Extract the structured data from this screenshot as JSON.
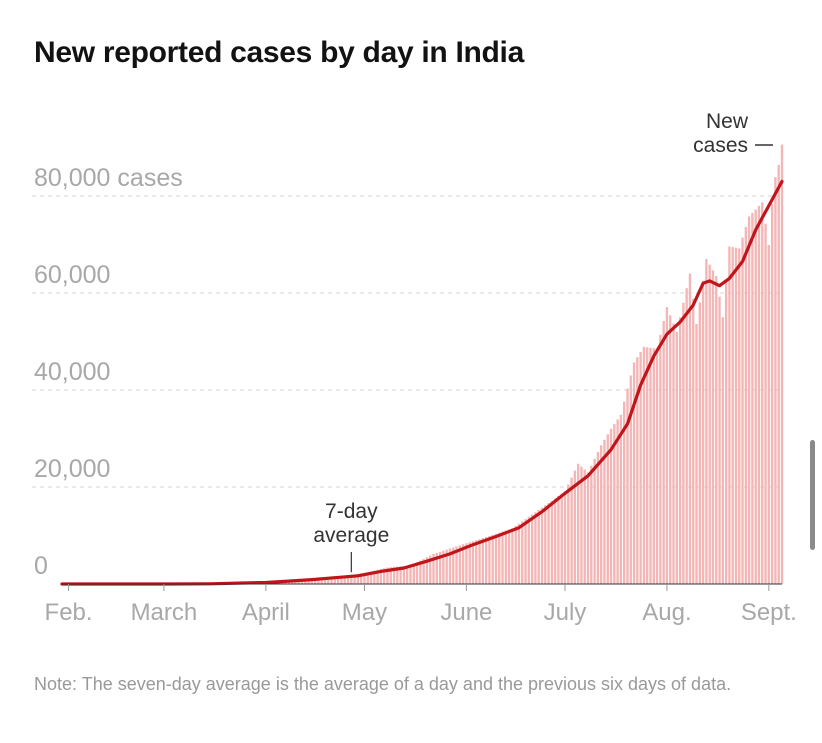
{
  "chart_data": {
    "type": "bar",
    "title": "New reported cases by day in India",
    "y_unit_label": "80,000 cases",
    "ylim": [
      0,
      90000
    ],
    "y_ticks": [
      {
        "value": 0,
        "label": "0"
      },
      {
        "value": 20000,
        "label": "20,000"
      },
      {
        "value": 40000,
        "label": "40,000"
      },
      {
        "value": 60000,
        "label": "60,000"
      },
      {
        "value": 80000,
        "label": "80,000 cases"
      }
    ],
    "x_ticks": [
      {
        "date": "2020-02-01",
        "label": "Feb."
      },
      {
        "date": "2020-03-01",
        "label": "March"
      },
      {
        "date": "2020-04-01",
        "label": "April"
      },
      {
        "date": "2020-05-01",
        "label": "May"
      },
      {
        "date": "2020-06-01",
        "label": "June"
      },
      {
        "date": "2020-07-01",
        "label": "July"
      },
      {
        "date": "2020-08-01",
        "label": "Aug."
      },
      {
        "date": "2020-09-01",
        "label": "Sept."
      }
    ],
    "xlim": [
      "2020-01-30",
      "2020-09-05"
    ],
    "grid": true,
    "series": [
      {
        "name": "New cases",
        "kind": "bars",
        "color": "#f3b6b6",
        "points": [
          [
            "2020-04-01",
            500
          ],
          [
            "2020-04-08",
            600
          ],
          [
            "2020-04-15",
            1000
          ],
          [
            "2020-04-22",
            1400
          ],
          [
            "2020-05-01",
            2300
          ],
          [
            "2020-05-08",
            3400
          ],
          [
            "2020-05-15",
            3800
          ],
          [
            "2020-05-22",
            6200
          ],
          [
            "2020-06-01",
            8400
          ],
          [
            "2020-06-08",
            9900
          ],
          [
            "2020-06-15",
            11500
          ],
          [
            "2020-06-22",
            14800
          ],
          [
            "2020-07-01",
            19100
          ],
          [
            "2020-07-05",
            24800
          ],
          [
            "2020-07-08",
            23000
          ],
          [
            "2020-07-12",
            28600
          ],
          [
            "2020-07-15",
            32000
          ],
          [
            "2020-07-18",
            34900
          ],
          [
            "2020-07-22",
            45700
          ],
          [
            "2020-07-25",
            48900
          ],
          [
            "2020-07-29",
            48500
          ],
          [
            "2020-08-01",
            57100
          ],
          [
            "2020-08-04",
            52000
          ],
          [
            "2020-08-08",
            64000
          ],
          [
            "2020-08-10",
            53600
          ],
          [
            "2020-08-13",
            66999
          ],
          [
            "2020-08-16",
            63500
          ],
          [
            "2020-08-18",
            55000
          ],
          [
            "2020-08-20",
            69600
          ],
          [
            "2020-08-23",
            69200
          ],
          [
            "2020-08-26",
            75800
          ],
          [
            "2020-08-28",
            77200
          ],
          [
            "2020-08-30",
            78700
          ],
          [
            "2020-09-01",
            69900
          ],
          [
            "2020-09-02",
            78400
          ],
          [
            "2020-09-03",
            83900
          ],
          [
            "2020-09-04",
            86400
          ],
          [
            "2020-09-05",
            90600
          ]
        ]
      },
      {
        "name": "7-day average",
        "kind": "line",
        "color": "#c0151b",
        "points": [
          [
            "2020-01-30",
            0
          ],
          [
            "2020-03-01",
            0
          ],
          [
            "2020-03-15",
            50
          ],
          [
            "2020-03-25",
            200
          ],
          [
            "2020-04-01",
            300
          ],
          [
            "2020-04-08",
            600
          ],
          [
            "2020-04-15",
            900
          ],
          [
            "2020-04-22",
            1300
          ],
          [
            "2020-04-29",
            1700
          ],
          [
            "2020-05-06",
            2600
          ],
          [
            "2020-05-13",
            3300
          ],
          [
            "2020-05-20",
            4700
          ],
          [
            "2020-05-27",
            6200
          ],
          [
            "2020-06-03",
            8100
          ],
          [
            "2020-06-10",
            9800
          ],
          [
            "2020-06-17",
            11600
          ],
          [
            "2020-06-24",
            14900
          ],
          [
            "2020-07-01",
            18700
          ],
          [
            "2020-07-08",
            22300
          ],
          [
            "2020-07-15",
            27700
          ],
          [
            "2020-07-20",
            33000
          ],
          [
            "2020-07-24",
            41000
          ],
          [
            "2020-07-28",
            47000
          ],
          [
            "2020-08-01",
            51500
          ],
          [
            "2020-08-05",
            54000
          ],
          [
            "2020-08-09",
            57500
          ],
          [
            "2020-08-12",
            62000
          ],
          [
            "2020-08-14",
            62500
          ],
          [
            "2020-08-17",
            61500
          ],
          [
            "2020-08-20",
            63000
          ],
          [
            "2020-08-24",
            66500
          ],
          [
            "2020-08-28",
            73000
          ],
          [
            "2020-09-01",
            78000
          ],
          [
            "2020-09-05",
            83000
          ]
        ]
      }
    ],
    "annotations": [
      {
        "lines": [
          "7-day",
          "average"
        ],
        "date": "2020-04-27",
        "value": 1600
      },
      {
        "lines": [
          "New",
          "cases"
        ],
        "date": "2020-09-05",
        "value": 90600
      }
    ]
  },
  "note": "Note: The seven-day average is the average of a day and the previous six days of data."
}
